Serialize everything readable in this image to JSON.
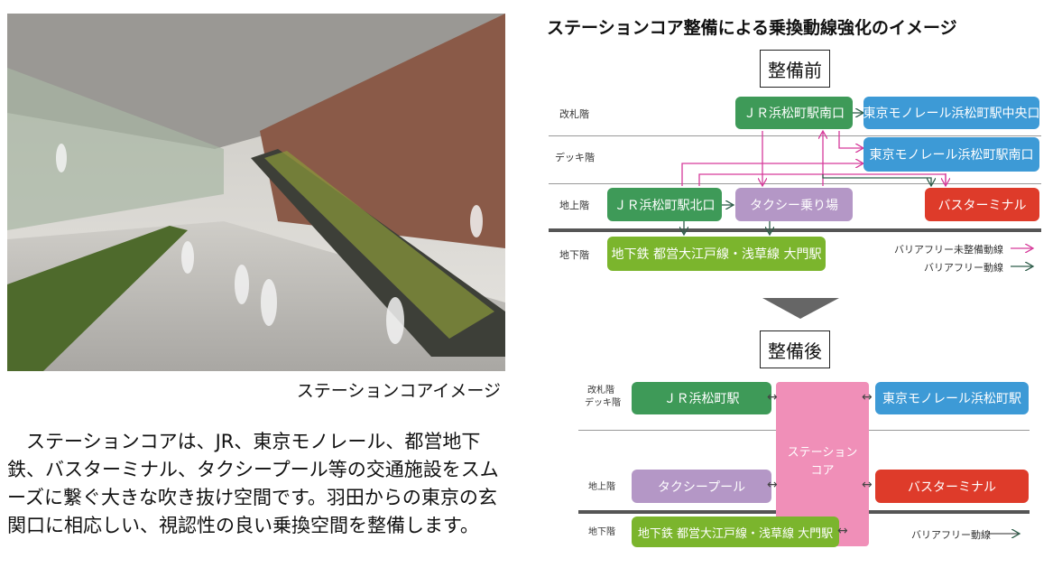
{
  "photo": {
    "caption": "ステーションコアイメージ"
  },
  "body_text": "　ステーションコアは、JR、東京モノレール、都営地下鉄、バスターミナル、タクシープール等の交通施設をスムーズに繋ぐ大きな吹き抜け空間です。羽田からの東京の玄関口に相応しい、視認性の良い乗換空間を整備します。",
  "diagram": {
    "title": "ステーションコア整備による乗換動線強化のイメージ",
    "before": {
      "label": "整備前",
      "levels": [
        "改札階",
        "デッキ階",
        "地上階",
        "地下階"
      ],
      "nodes": {
        "jr_south": "ＪＲ浜松町駅南口",
        "mono_central": "東京モノレール浜松町駅中央口",
        "mono_south": "東京モノレール浜松町駅南口",
        "jr_north": "ＪＲ浜松町駅北口",
        "taxi": "タクシー乗り場",
        "bus": "バスターミナル",
        "subway": "地下鉄 都営大江戸線・浅草線 大門駅"
      },
      "legend": [
        "バリアフリー未整備動線",
        "バリアフリー動線"
      ],
      "colors": {
        "non_barrier_free": "#d63a9a",
        "barrier_free": "#2f5d4a"
      }
    },
    "after": {
      "label": "整備後",
      "levels": [
        "改札階",
        "デッキ階",
        "地上階",
        "地下階"
      ],
      "core": [
        "ステーション",
        "コア"
      ],
      "nodes": {
        "jr": "ＪＲ浜松町駅",
        "mono": "東京モノレール浜松町駅",
        "taxi": "タクシープール",
        "bus": "バスターミナル",
        "subway": "地下鉄 都営大江戸線・浅草線 大門駅"
      },
      "legend": "バリアフリー動線"
    }
  }
}
